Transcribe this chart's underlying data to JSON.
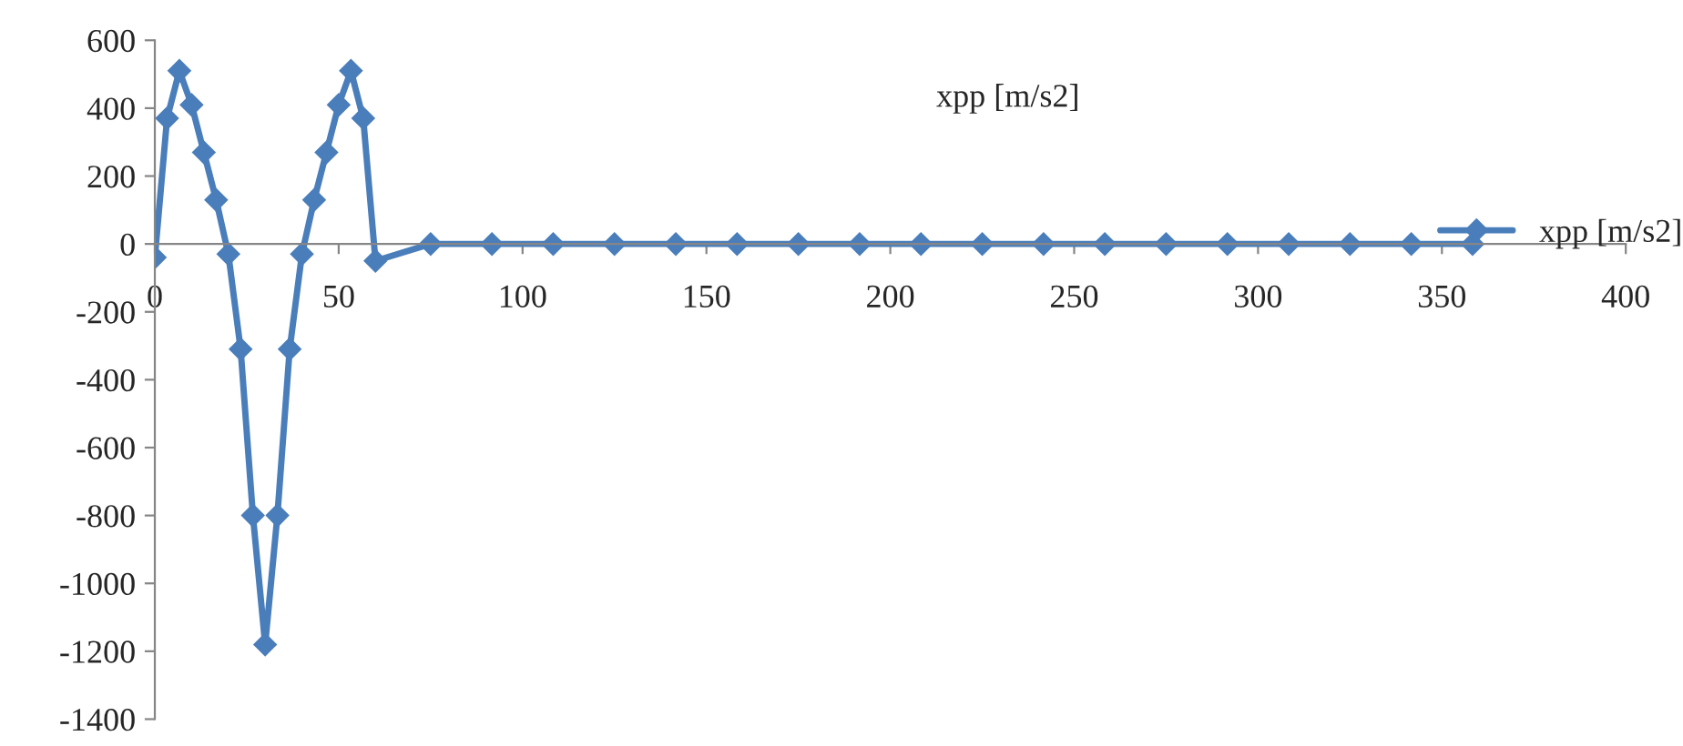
{
  "chart_data": {
    "type": "line",
    "title": "xpp [m/s2]",
    "x": [
      0,
      3.33,
      6.67,
      10,
      13.33,
      16.67,
      20,
      23.33,
      26.67,
      30,
      33.33,
      36.67,
      40,
      43.33,
      46.67,
      50,
      53.33,
      56.67,
      60,
      75,
      91.67,
      108.33,
      125,
      141.67,
      158.33,
      175,
      191.67,
      208.33,
      225,
      241.67,
      258.33,
      275,
      291.67,
      308.33,
      325,
      341.67,
      358.33
    ],
    "series": [
      {
        "name": "xpp [m/s2]",
        "color": "#4a7ebb",
        "values": [
          -40,
          370,
          510,
          410,
          270,
          130,
          -30,
          -310,
          -800,
          -1180,
          -800,
          -310,
          -30,
          130,
          270,
          410,
          510,
          370,
          -50,
          0,
          0,
          0,
          0,
          0,
          0,
          0,
          0,
          0,
          0,
          0,
          0,
          0,
          0,
          0,
          0,
          0,
          0
        ]
      }
    ],
    "xlim": [
      0,
      400
    ],
    "xticks": [
      0,
      50,
      100,
      150,
      200,
      250,
      300,
      350,
      400
    ],
    "ylim": [
      -1400,
      600
    ],
    "yticks": [
      -1400,
      -1200,
      -1000,
      -800,
      -600,
      -400,
      -200,
      0,
      200,
      400,
      600
    ],
    "grid": false,
    "legend": "right",
    "marker": "diamond",
    "line_style": "solid"
  }
}
